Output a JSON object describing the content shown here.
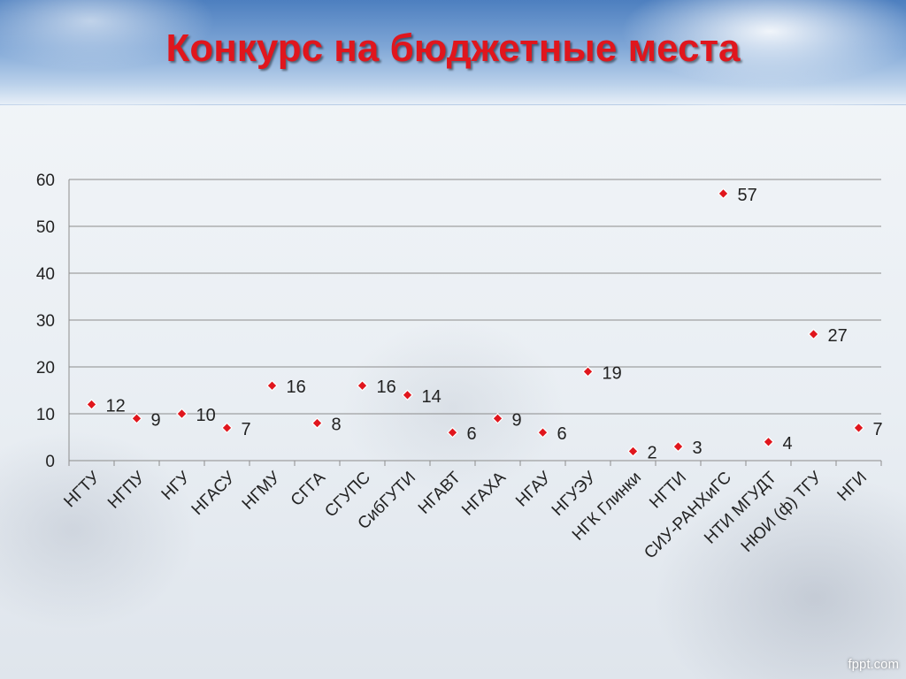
{
  "slide": {
    "title": "Конкурс на бюджетные места",
    "watermark": "fppt.com"
  },
  "chart_data": {
    "type": "scatter",
    "title": "Конкурс на бюджетные места",
    "categories": [
      "НГТУ",
      "НГПУ",
      "НГУ",
      "НГАСУ",
      "НГМУ",
      "СГГА",
      "СГУПС",
      "СибГУТИ",
      "НГАВТ",
      "НГАХА",
      "НГАУ",
      "НГУЭУ",
      "НГК Глинки",
      "НГТИ",
      "СИУ-РАНХиГС",
      "НТИ МГУДТ",
      "НЮИ (ф) ТГУ",
      "НГИ"
    ],
    "values": [
      12,
      9,
      10,
      7,
      16,
      8,
      16,
      14,
      6,
      9,
      6,
      19,
      2,
      3,
      57,
      4,
      27,
      7
    ],
    "ylim": [
      0,
      60
    ],
    "yticks": [
      "0",
      "10",
      "20",
      "30",
      "40",
      "50",
      "60"
    ],
    "grid": true,
    "legend": "none",
    "marker_color": "#e0161d",
    "title_color": "#e0161d"
  }
}
